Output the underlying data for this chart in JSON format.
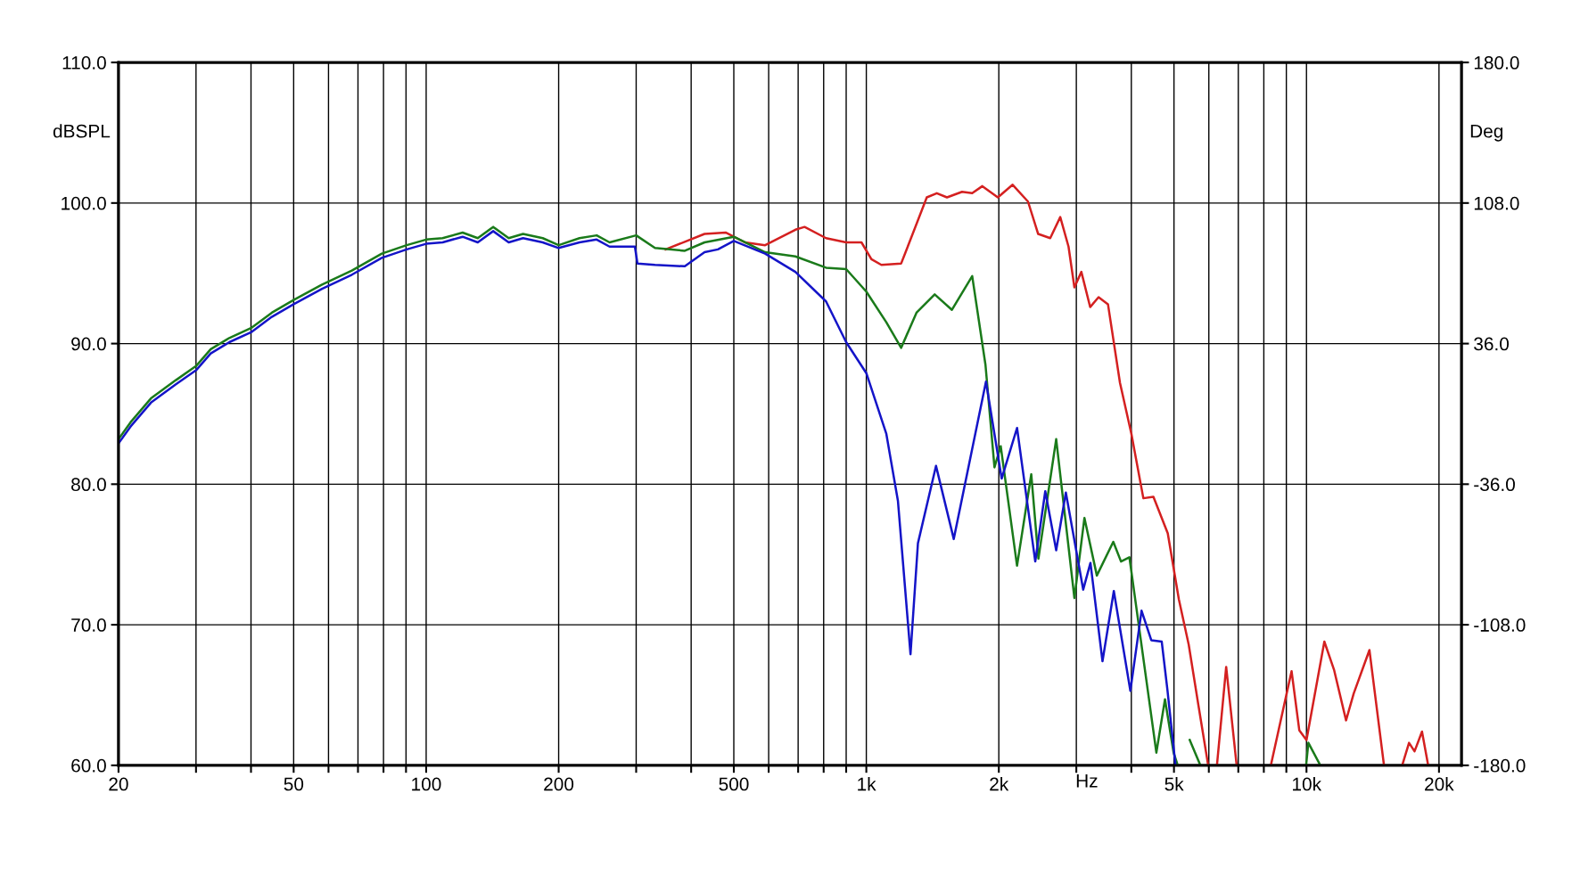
{
  "chart_data": {
    "type": "line",
    "xlabel": "Hz",
    "ylabel": "dBSPL",
    "y2label": "Deg",
    "log": "x",
    "grid": true,
    "marker": "none",
    "line_style": "solid",
    "xlim": [
      20,
      22500
    ],
    "xticks": [
      20,
      {
        "value": 30,
        "label": null
      },
      {
        "value": 40,
        "label": null
      },
      50,
      {
        "value": 60,
        "label": null
      },
      {
        "value": 70,
        "label": null
      },
      {
        "value": 80,
        "label": null
      },
      {
        "value": 90,
        "label": null
      },
      100,
      200,
      {
        "value": 300,
        "label": null
      },
      {
        "value": 400,
        "label": null
      },
      500,
      {
        "value": 600,
        "label": null
      },
      {
        "value": 700,
        "label": null
      },
      {
        "value": 800,
        "label": null
      },
      {
        "value": 900,
        "label": null
      },
      {
        "value": 1000,
        "label": "1k"
      },
      {
        "value": 2000,
        "label": "2k"
      },
      {
        "value": 3000,
        "label": null
      },
      {
        "value": 4000,
        "label": null
      },
      {
        "value": 5000,
        "label": "5k"
      },
      {
        "value": 6000,
        "label": null
      },
      {
        "value": 7000,
        "label": null
      },
      {
        "value": 8000,
        "label": null
      },
      {
        "value": 9000,
        "label": null
      },
      {
        "value": 10000,
        "label": "10k"
      },
      {
        "value": 20000,
        "label": "20k"
      }
    ],
    "ylim": [
      60,
      110
    ],
    "yticks": [
      {
        "value": 60,
        "label": "60.0"
      },
      {
        "value": 70,
        "label": "70.0"
      },
      {
        "value": 80,
        "label": "80.0"
      },
      {
        "value": 90,
        "label": "90.0"
      },
      {
        "value": 100,
        "label": "100.0"
      },
      {
        "value": 110,
        "label": "110.0"
      }
    ],
    "y2lim": [
      -180,
      180
    ],
    "y2ticks": [
      {
        "value": -180,
        "label": "-180.0"
      },
      {
        "value": -108,
        "label": "-108.0"
      },
      {
        "value": -36,
        "label": "-36.0"
      },
      {
        "value": 36,
        "label": "36.0"
      },
      {
        "value": 108,
        "label": "108.0"
      },
      {
        "value": 180,
        "label": "180.0"
      }
    ],
    "series": [
      {
        "color": "#d42020",
        "x": [
          350,
          429,
          479,
          530,
          589,
          690,
          724,
          810,
          900,
          975,
          1027,
          1082,
          1200,
          1228,
          1372,
          1446,
          1525,
          1650,
          1740,
          1835,
          1990,
          2150,
          2330,
          2457,
          2617,
          2758,
          2880,
          2970,
          3080,
          3225,
          3370,
          3540,
          3770,
          4000,
          4260,
          4490,
          4840,
          5130,
          5400,
          5680,
          5980,
          6100,
          6260,
          6570,
          6940,
          7500,
          8300,
          9250,
          9630,
          10000,
          10980,
          11550,
          12300,
          12800,
          13900,
          15000,
          16000,
          16500,
          17100,
          17600,
          18300,
          18900
        ],
        "values": [
          96.7,
          97.8,
          97.9,
          97.2,
          97.0,
          98.1,
          98.3,
          97.5,
          97.2,
          97.2,
          96.0,
          95.6,
          95.7,
          96.5,
          100.4,
          100.7,
          100.4,
          100.8,
          100.7,
          101.2,
          100.4,
          101.3,
          100.1,
          97.8,
          97.5,
          99.0,
          96.9,
          94.0,
          95.1,
          92.6,
          93.3,
          92.8,
          87.2,
          83.6,
          79.0,
          79.1,
          76.5,
          71.8,
          68.6,
          64.3,
          60.0,
          null,
          60.0,
          67.0,
          60.0,
          null,
          60.0,
          66.7,
          62.5,
          61.8,
          68.8,
          66.8,
          63.2,
          65.1,
          68.2,
          60.0,
          null,
          60.0,
          61.6,
          61.0,
          62.4,
          60.0
        ]
      },
      {
        "color": "#1a7a1a",
        "x": [
          20,
          21.3,
          23.7,
          27.0,
          30,
          32.4,
          35.7,
          40,
          44.6,
          50,
          58,
          67.8,
          79.3,
          90.3,
          100,
          109,
          121,
          131,
          142,
          154,
          166,
          184,
          200,
          223,
          244,
          261,
          300,
          331,
          387,
          429,
          500,
          589,
          690,
          810,
          900,
          1000,
          1111,
          1200,
          1300,
          1430,
          1565,
          1740,
          1865,
          1955,
          2020,
          2200,
          2370,
          2460,
          2700,
          2970,
          3130,
          3340,
          3640,
          3790,
          3960,
          4560,
          4770,
          4990,
          5100,
          5300,
          5430,
          5740,
          8000,
          9980,
          10100,
          10750
        ],
        "values": [
          83.2,
          84.4,
          86.1,
          87.4,
          88.4,
          89.6,
          90.4,
          91.1,
          92.2,
          93.1,
          94.2,
          95.2,
          96.4,
          97.0,
          97.4,
          97.5,
          97.9,
          97.5,
          98.3,
          97.5,
          97.8,
          97.5,
          97.0,
          97.5,
          97.7,
          97.2,
          97.7,
          96.8,
          96.6,
          97.2,
          97.6,
          96.5,
          96.2,
          95.4,
          95.3,
          93.7,
          91.5,
          89.7,
          92.2,
          93.5,
          92.4,
          94.8,
          88.5,
          81.2,
          82.7,
          74.2,
          80.7,
          74.7,
          83.2,
          71.9,
          77.6,
          73.5,
          75.9,
          74.5,
          74.8,
          60.9,
          64.7,
          60.9,
          60.0,
          null,
          61.8,
          60.0,
          null,
          60.0,
          61.6,
          60.0
        ]
      },
      {
        "color": "#1414c8",
        "x": [
          20,
          21.3,
          23.7,
          27.0,
          30,
          32.4,
          35.7,
          40,
          44.6,
          50,
          58,
          67.8,
          79.3,
          90.3,
          100,
          109,
          121,
          131,
          142,
          154,
          166,
          184,
          200,
          223,
          244,
          261,
          298,
          302,
          331,
          387,
          429,
          460,
          500,
          589,
          690,
          810,
          900,
          1000,
          1110,
          1180,
          1260,
          1310,
          1440,
          1580,
          1870,
          2030,
          2200,
          2420,
          2550,
          2700,
          2840,
          3110,
          3230,
          3440,
          3650,
          3980,
          4220,
          4440,
          4690,
          4830,
          5040
        ],
        "values": [
          82.9,
          84.1,
          85.8,
          87.1,
          88.1,
          89.3,
          90.1,
          90.8,
          91.9,
          92.8,
          93.9,
          94.9,
          96.1,
          96.7,
          97.1,
          97.2,
          97.6,
          97.2,
          98.0,
          97.2,
          97.5,
          97.2,
          96.8,
          97.2,
          97.4,
          96.9,
          96.9,
          95.7,
          95.6,
          95.5,
          96.5,
          96.7,
          97.3,
          96.4,
          95.1,
          93.0,
          90.1,
          87.9,
          83.6,
          78.8,
          67.9,
          75.8,
          81.3,
          76.1,
          87.3,
          80.4,
          84.0,
          74.5,
          79.5,
          75.3,
          79.4,
          72.5,
          74.4,
          67.4,
          72.4,
          65.3,
          71.0,
          68.9,
          68.8,
          65.4,
          60.0
        ]
      }
    ]
  }
}
